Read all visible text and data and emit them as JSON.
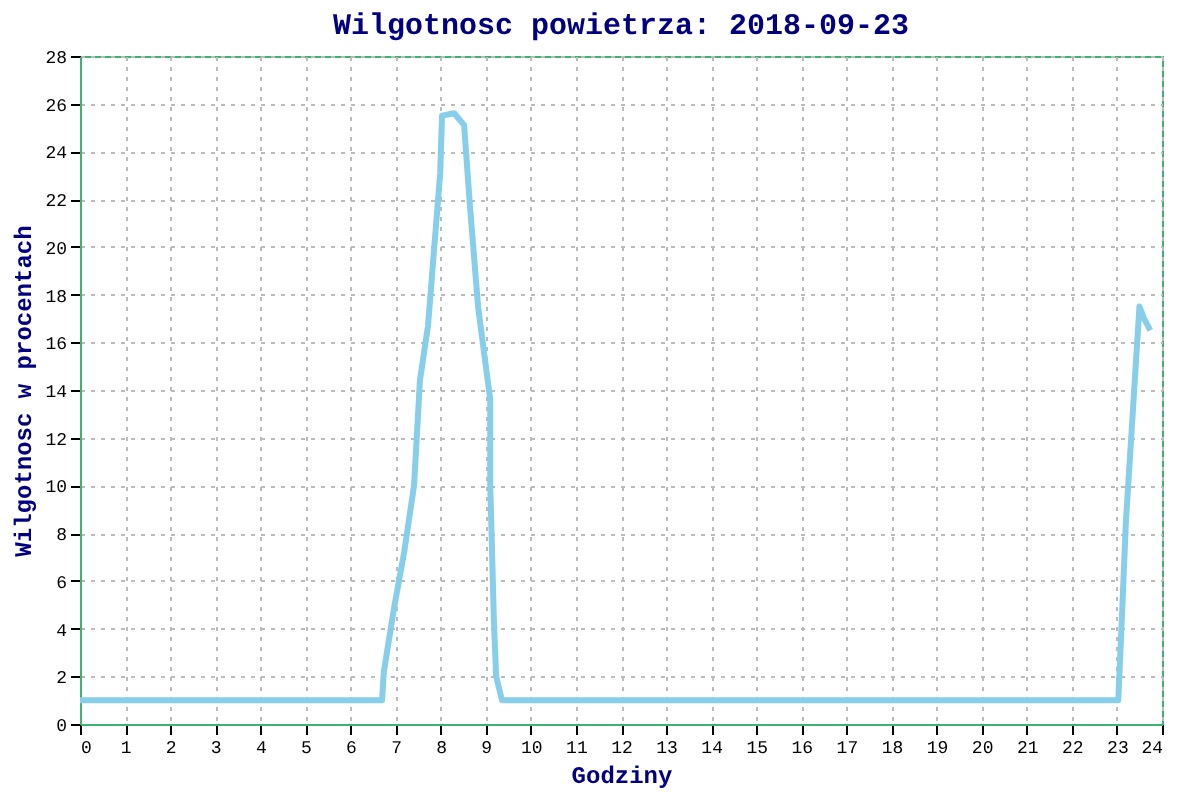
{
  "chart_data": {
    "type": "line",
    "title": "Wilgotnosc powietrza: 2018-09-23",
    "xlabel": "Godziny",
    "ylabel": "Wilgotnosc w procentach",
    "xlim": [
      0,
      24
    ],
    "xticks": [
      0,
      1,
      2,
      3,
      4,
      5,
      6,
      7,
      8,
      9,
      10,
      11,
      12,
      13,
      14,
      15,
      16,
      17,
      18,
      19,
      20,
      21,
      22,
      23,
      24
    ],
    "ylim": [
      0,
      28
    ],
    "yticks": [
      0,
      2,
      4,
      6,
      8,
      10,
      12,
      14,
      16,
      18,
      20,
      22,
      24,
      26,
      28
    ],
    "grid": true,
    "marker": "none",
    "line_style": "solid",
    "series": [
      {
        "color": "#87ceeb",
        "x": [
          0,
          6.7,
          6.74,
          6.97,
          7.19,
          7.41,
          7.54,
          7.72,
          7.85,
          7.99,
          8.03,
          8.3,
          8.52,
          8.65,
          8.83,
          8.96,
          9.1,
          9.1,
          9.18,
          9.23,
          9.36,
          23.03,
          23.1,
          23.2,
          23.35,
          23.5,
          23.6,
          23.74
        ],
        "values": [
          1,
          1,
          2.2,
          4.9,
          7.2,
          10,
          14.4,
          16.7,
          19.8,
          23.1,
          25.5,
          25.6,
          25.1,
          21.7,
          17.5,
          15.6,
          13.6,
          10,
          4.4,
          2,
          1,
          1,
          4,
          8.5,
          13,
          17.5,
          17,
          16.5
        ]
      }
    ]
  }
}
